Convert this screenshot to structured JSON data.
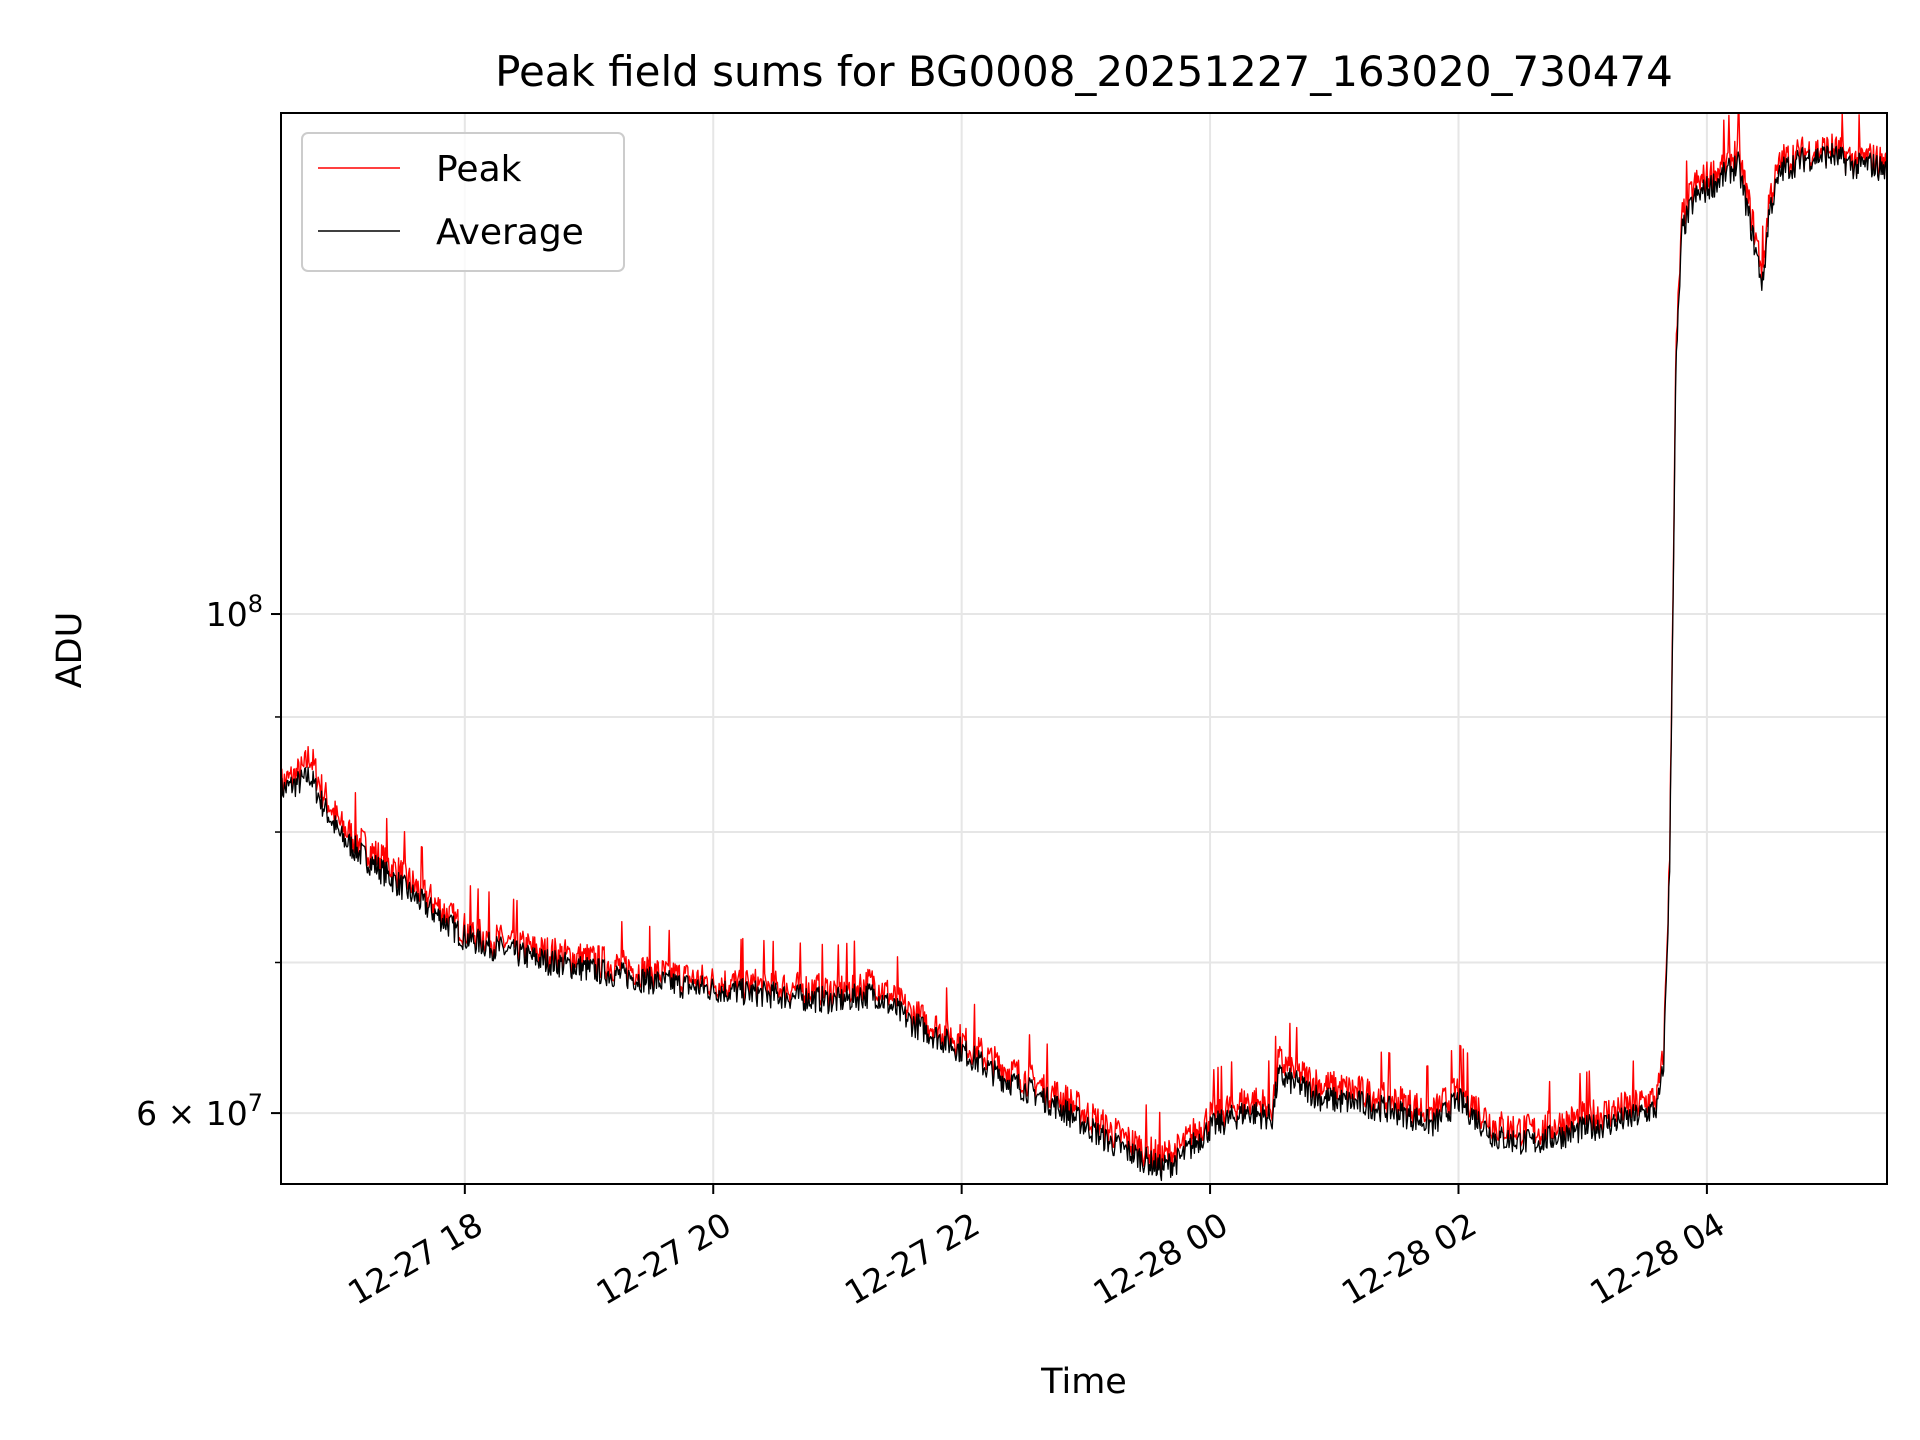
{
  "chart_data": {
    "type": "line",
    "title": "Peak field sums for BG0008_20251227_163020_730474",
    "xlabel": "Time",
    "ylabel": "ADU",
    "yscale": "log",
    "grid": true,
    "legend_position": "upper-left",
    "x_unit": "hours since 12-27 00:00",
    "xlim": [
      16.52,
      29.45
    ],
    "ylim": [
      55800000.0,
      167000000.0
    ],
    "x_ticks": [
      {
        "x": 18,
        "label": "12-27 18"
      },
      {
        "x": 20,
        "label": "12-27 20"
      },
      {
        "x": 22,
        "label": "12-27 22"
      },
      {
        "x": 24,
        "label": "12-28 00"
      },
      {
        "x": 26,
        "label": "12-28 02"
      },
      {
        "x": 28,
        "label": "12-28 04"
      }
    ],
    "y_major_ticks": [
      {
        "y": 60000000,
        "base": "6 × 10",
        "exp": "7"
      },
      {
        "y": 100000000,
        "base": "10",
        "exp": "8"
      }
    ],
    "y_minor_gridlines": [
      70000000,
      80000000,
      90000000
    ],
    "series": [
      {
        "name": "Peak",
        "color": "#ff0000",
        "x": [
          16.52,
          16.7,
          16.75,
          16.85,
          17.0,
          17.2,
          17.5,
          17.8,
          18.0,
          18.3,
          18.6,
          19.0,
          19.5,
          20.0,
          20.5,
          21.0,
          21.3,
          21.6,
          22.0,
          22.3,
          22.6,
          22.9,
          23.2,
          23.5,
          23.6,
          23.75,
          24.0,
          24.3,
          24.5,
          24.55,
          24.7,
          24.9,
          25.2,
          25.5,
          25.8,
          26.0,
          26.3,
          26.6,
          27.0,
          27.4,
          27.6,
          27.65,
          27.7,
          27.75,
          27.8,
          27.9,
          28.1,
          28.25,
          28.35,
          28.45,
          28.5,
          28.6,
          28.8,
          29.0,
          29.2,
          29.3,
          29.45
        ],
        "y": [
          84000000,
          85200000,
          86600000,
          83500000,
          80500000,
          78800000,
          76500000,
          74000000,
          72400000,
          71500000,
          70800000,
          70200000,
          69300000,
          68600000,
          68300000,
          68000000,
          68600000,
          66400000,
          64600000,
          63000000,
          61900000,
          60500000,
          58900000,
          57700000,
          57300000,
          57800000,
          59800000,
          60800000,
          60400000,
          63300000,
          62500000,
          61700000,
          61300000,
          60800000,
          60000000,
          61500000,
          59200000,
          58900000,
          59700000,
          60400000,
          61000000,
          63500000,
          78000000,
          130000000,
          150000000,
          155000000,
          157500000,
          160500000,
          151000000,
          142000000,
          153000000,
          159000000,
          160500000,
          161000000,
          159000000,
          159500000,
          158500000
        ]
      },
      {
        "name": "Average",
        "color": "#000000",
        "x": [
          16.52,
          16.7,
          16.75,
          16.85,
          17.0,
          17.2,
          17.5,
          17.8,
          18.0,
          18.3,
          18.6,
          19.0,
          19.5,
          20.0,
          20.5,
          21.0,
          21.3,
          21.6,
          22.0,
          22.3,
          22.6,
          22.9,
          23.2,
          23.5,
          23.6,
          23.75,
          24.0,
          24.3,
          24.5,
          24.55,
          24.7,
          24.9,
          25.2,
          25.5,
          25.8,
          26.0,
          26.3,
          26.6,
          27.0,
          27.4,
          27.6,
          27.65,
          27.7,
          27.75,
          27.8,
          27.9,
          28.1,
          28.25,
          28.35,
          28.45,
          28.5,
          28.6,
          28.8,
          29.0,
          29.2,
          29.3,
          29.45
        ],
        "y": [
          83500000,
          84300000,
          84800000,
          82400000,
          79600000,
          77900000,
          75600000,
          73300000,
          71800000,
          70900000,
          70200000,
          69500000,
          68700000,
          68100000,
          67700000,
          67300000,
          67800000,
          65800000,
          64000000,
          62300000,
          61200000,
          59800000,
          58200000,
          57100000,
          56700000,
          57200000,
          59100000,
          60100000,
          59700000,
          62300000,
          61800000,
          60900000,
          60600000,
          60100000,
          59300000,
          60800000,
          58500000,
          58200000,
          59000000,
          59700000,
          60300000,
          62700000,
          77000000,
          128000000,
          148000000,
          153000000,
          156000000,
          158500000,
          149000000,
          140000000,
          151000000,
          157500000,
          159500000,
          160000000,
          158000000,
          158500000,
          157500000
        ]
      }
    ]
  }
}
